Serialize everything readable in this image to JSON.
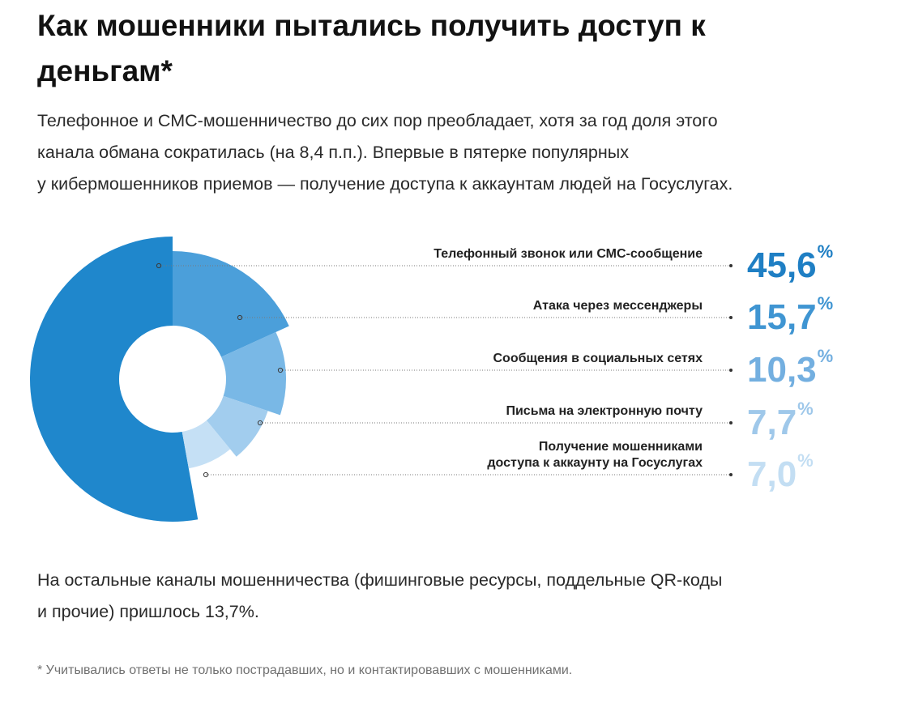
{
  "heading": {
    "title": "Как мошенники пытались получить доступ к деньгам*"
  },
  "intro": {
    "lines": [
      "Телефонное и СМС-мошенничество до сих пор преобладает, хотя за год доля этого",
      "канала обмана сократилась (на 8,4 п.п.). Впервые в пятерке популярных",
      "у кибермошенников приемов — получение доступа к аккаунтам людей на Госуслугах."
    ]
  },
  "chart_data": {
    "type": "pie",
    "unit": "%",
    "categories": [
      "Телефонный звонок или СМС-сообщение",
      "Атака через мессенджеры",
      "Сообщения в социальных сетях",
      "Письма на электронную почту",
      "Получение мошенниками доступа к аккаунту на Госуслугах"
    ],
    "values": [
      45.6,
      15.7,
      10.3,
      7.7,
      7.0
    ],
    "value_labels": [
      "45,6",
      "15,7",
      "10,3",
      "7,7",
      "7,0"
    ],
    "label_lines": [
      [
        "Телефонный звонок или СМС-сообщение"
      ],
      [
        "Атака через мессенджеры"
      ],
      [
        "Сообщения в социальных сетях"
      ],
      [
        "Письма на электронную почту"
      ],
      [
        "Получение мошенниками",
        "доступа к аккаунту на Госуслугах"
      ]
    ],
    "colors": [
      "#1f87cc",
      "#4b9fda",
      "#79b8e6",
      "#a2cdee",
      "#c5e0f5"
    ],
    "value_colors": [
      "#1f7fc4",
      "#3f95d2",
      "#73afe0",
      "#9fc8ea",
      "#c3def3"
    ]
  },
  "outro": {
    "lines": [
      "На остальные каналы мошенничества (фишинговые ресурсы, поддельные QR-коды",
      "и прочие) пришлось 13,7%."
    ]
  },
  "footnote": {
    "text": "* Учитывались ответы не только пострадавших, но и контактировавших с мошенниками."
  }
}
